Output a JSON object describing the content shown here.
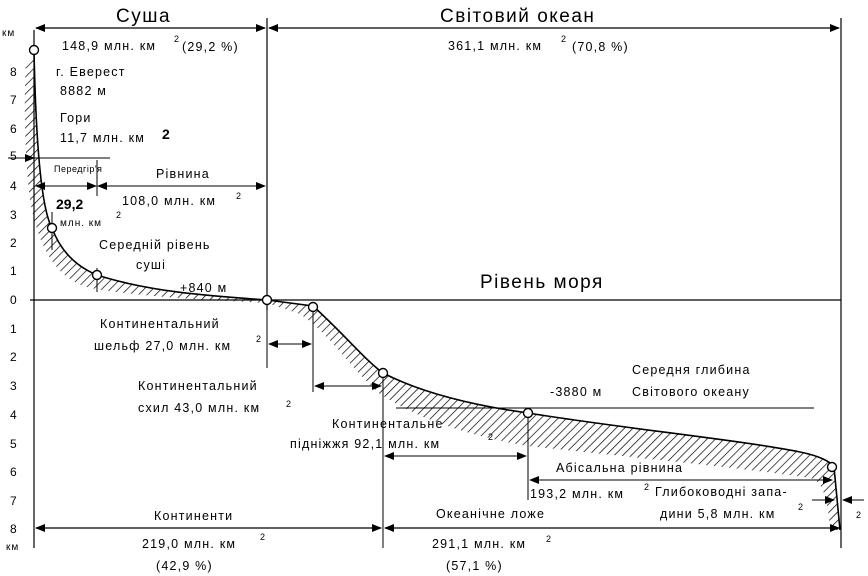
{
  "header": {
    "land_title": "Суша",
    "land_area": "148,9 млн. км",
    "land_sup": "2",
    "land_pct": "(29,2 %)",
    "ocean_title": "Світовий океан",
    "ocean_area": "361,1 млн. км",
    "ocean_sup": "2",
    "ocean_pct": "(70,8 %)"
  },
  "axis": {
    "unit_top": "км",
    "unit_bottom": "км",
    "up_ticks": [
      "8",
      "7",
      "6",
      "5",
      "4",
      "3",
      "2",
      "1",
      "0"
    ],
    "down_ticks": [
      "1",
      "2",
      "3",
      "4",
      "5",
      "6",
      "7",
      "8"
    ]
  },
  "labels": {
    "everest_1": "г. Еверест",
    "everest_2": "8882 м",
    "mountains_1": "Гори",
    "mountains_2": "11,7 млн. км",
    "mountains_sup": "2",
    "foothills": "Передгір'я",
    "foothills_val": "29,2",
    "foothills_unit": "млн. км",
    "foothills_sup": "2",
    "plain_1": "Рівнина",
    "plain_2": "108,0 млн. км",
    "plain_sup": "2",
    "mean_land_1": "Середній рівень",
    "mean_land_2": "суші",
    "plus840": "+840 м",
    "sea_level": "Рівень моря",
    "shelf_1": "Континентальний",
    "shelf_2": "шельф 27,0 млн. км",
    "shelf_sup": "2",
    "slope_1": "Континентальний",
    "slope_2": "схил 43,0 млн. км",
    "slope_sup": "2",
    "rise_1": "Континентальне",
    "rise_2": "підніжжя 92,1 млн. км",
    "rise_sup": "2",
    "mean_ocean_1": "Середня глибина",
    "mean_ocean_2": "Світового океану",
    "minus3880": "-3880 м",
    "abyssal": "Абісальна рівнина",
    "abyssal_area": "193,2 млн. км",
    "abyssal_sup": "2",
    "trench_1": "Глибоководні запа-",
    "trench_2": "дини 5,8 млн. км",
    "trench_sup_1": "2",
    "trench_sup_2": "2"
  },
  "footer": {
    "continents": "Континенти",
    "continents_area": "219,0 млн. км",
    "continents_sup": "2",
    "continents_pct": "(42,9 %)",
    "ocean_floor": "Океанічне ложе",
    "ocean_floor_area": "291,1 млн. км",
    "ocean_floor_sup": "2",
    "ocean_floor_pct": "(57,1 %)"
  },
  "colors": {
    "ink": "#000000",
    "paper": "#ffffff"
  }
}
